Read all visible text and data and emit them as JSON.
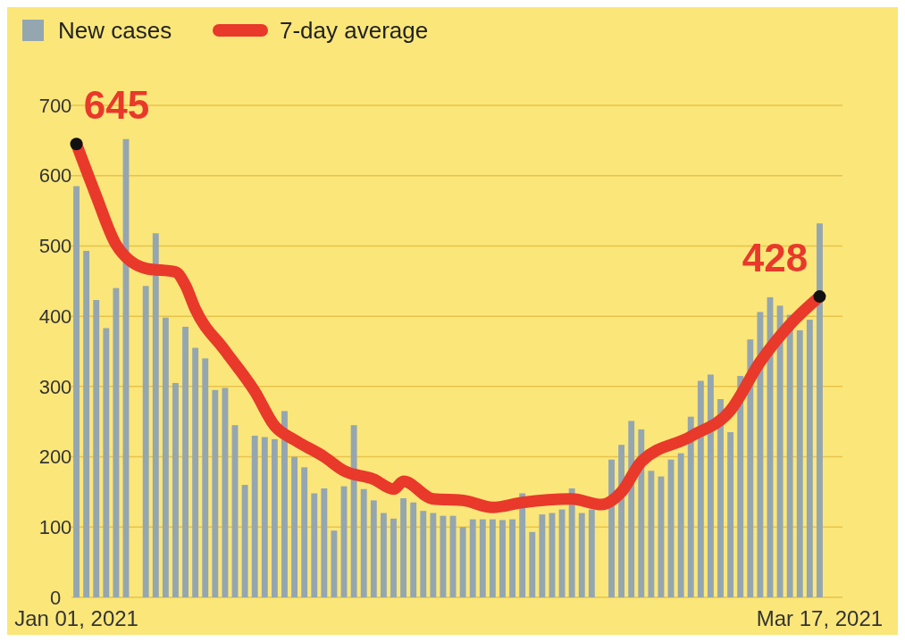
{
  "chart_data": {
    "type": "bar",
    "legend": "top left",
    "grid": "y",
    "ylim": [
      0,
      700
    ],
    "yticks": [
      0,
      100,
      200,
      300,
      400,
      500,
      600,
      700
    ],
    "xlim": [
      "2020-12-31T12:00",
      "2021-03-17T12:00"
    ],
    "xticks": [
      {
        "value": "2021-01-01",
        "label": "Jan 01, 2021"
      },
      {
        "value": "2021-03-17",
        "label": "Mar 17, 2021"
      }
    ],
    "x": [
      "2021-01-01",
      "2021-01-02",
      "2021-01-03",
      "2021-01-04",
      "2021-01-05",
      "2021-01-06",
      "2021-01-07",
      "2021-01-08",
      "2021-01-09",
      "2021-01-10",
      "2021-01-11",
      "2021-01-12",
      "2021-01-13",
      "2021-01-14",
      "2021-01-15",
      "2021-01-16",
      "2021-01-17",
      "2021-01-18",
      "2021-01-19",
      "2021-01-20",
      "2021-01-21",
      "2021-01-22",
      "2021-01-23",
      "2021-01-24",
      "2021-01-25",
      "2021-01-26",
      "2021-01-27",
      "2021-01-28",
      "2021-01-29",
      "2021-01-30",
      "2021-01-31",
      "2021-02-01",
      "2021-02-02",
      "2021-02-03",
      "2021-02-04",
      "2021-02-05",
      "2021-02-06",
      "2021-02-07",
      "2021-02-08",
      "2021-02-09",
      "2021-02-10",
      "2021-02-11",
      "2021-02-12",
      "2021-02-13",
      "2021-02-14",
      "2021-02-15",
      "2021-02-16",
      "2021-02-17",
      "2021-02-18",
      "2021-02-19",
      "2021-02-20",
      "2021-02-21",
      "2021-02-22",
      "2021-02-23",
      "2021-02-24",
      "2021-02-25",
      "2021-02-26",
      "2021-02-27",
      "2021-02-28",
      "2021-03-01",
      "2021-03-02",
      "2021-03-03",
      "2021-03-04",
      "2021-03-05",
      "2021-03-06",
      "2021-03-07",
      "2021-03-08",
      "2021-03-09",
      "2021-03-10",
      "2021-03-11",
      "2021-03-12",
      "2021-03-13",
      "2021-03-14",
      "2021-03-15",
      "2021-03-16",
      "2021-03-17"
    ],
    "series": [
      {
        "name": "New cases",
        "color": "#94a6b0",
        "values": [
          585,
          493,
          423,
          383,
          440,
          652,
          null,
          443,
          518,
          398,
          305,
          385,
          355,
          340,
          295,
          298,
          245,
          160,
          230,
          228,
          225,
          265,
          200,
          185,
          148,
          155,
          95,
          158,
          245,
          154,
          138,
          120,
          112,
          141,
          135,
          123,
          120,
          116,
          116,
          100,
          111,
          111,
          111,
          110,
          111,
          148,
          93,
          118,
          120,
          125,
          155,
          120,
          125,
          null,
          196,
          217,
          251,
          239,
          180,
          172,
          196,
          205,
          257,
          308,
          317,
          282,
          235,
          315,
          367,
          406,
          427,
          415,
          402,
          380,
          395,
          532
        ]
      },
      {
        "name": "7-day average",
        "type": "line",
        "color": "#e8392b",
        "x": [
          "2021-01-01",
          "2021-01-03",
          "2021-01-05",
          "2021-01-08",
          "2021-01-11",
          "2021-01-12",
          "2021-01-13",
          "2021-01-16",
          "2021-01-19",
          "2021-01-21",
          "2021-01-23",
          "2021-01-26",
          "2021-01-28",
          "2021-01-31",
          "2021-02-02",
          "2021-02-03",
          "2021-02-06",
          "2021-02-09",
          "2021-02-12",
          "2021-02-15",
          "2021-02-20",
          "2021-02-23",
          "2021-02-25",
          "2021-02-27",
          "2021-03-04",
          "2021-03-08",
          "2021-03-11",
          "2021-03-14",
          "2021-03-17"
        ],
        "values": [
          645,
          571,
          502,
          468,
          463,
          444,
          410,
          351,
          293,
          244,
          224,
          200,
          180,
          168,
          154,
          165,
          140,
          138,
          128,
          135,
          140,
          132,
          150,
          193,
          229,
          266,
          335,
          388,
          428
        ]
      }
    ],
    "annotations": [
      {
        "text": "645",
        "x": "2021-01-01",
        "y": 645
      },
      {
        "text": "428",
        "x": "2021-03-17",
        "y": 428
      }
    ]
  }
}
